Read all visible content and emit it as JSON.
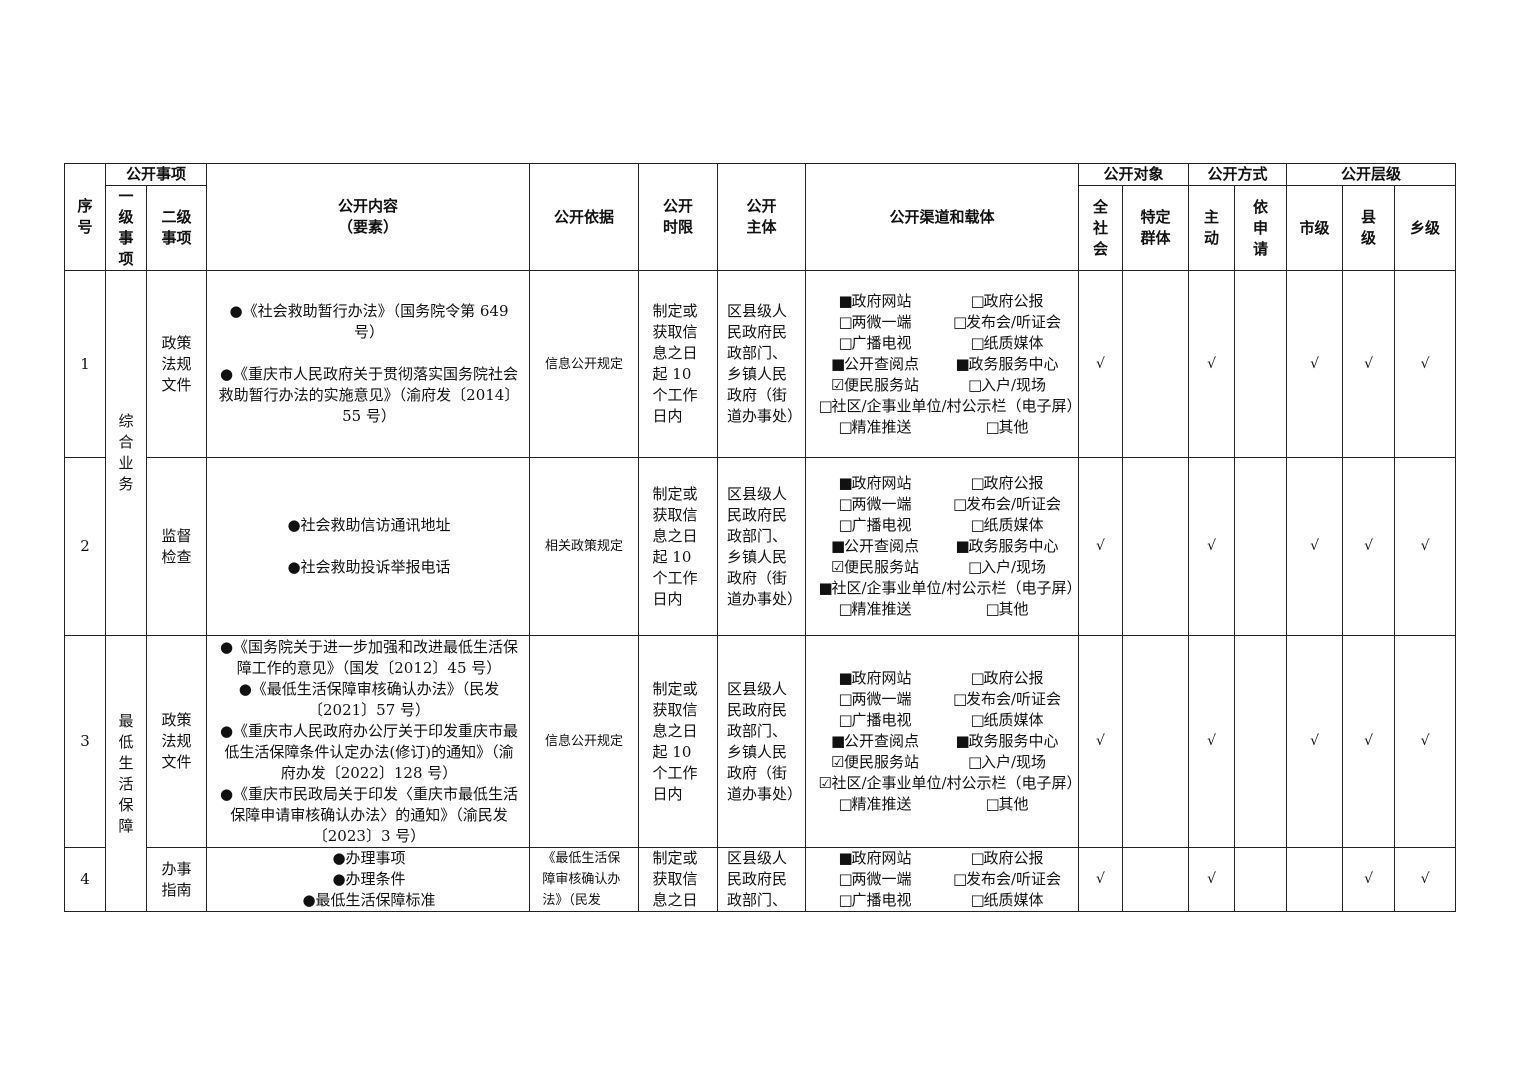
{
  "header": {
    "seq": "序号",
    "items_group": "公开事项",
    "level1": "一级事项",
    "level2": "二级事项",
    "content": "公开内容",
    "content_sub": "（要素）",
    "basis": "公开依据",
    "time_limit": "公开时限",
    "subject": "公开主体",
    "channels": "公开渠道和载体",
    "target_group": "公开对象",
    "target_all": "全社会",
    "target_specific": "特定群体",
    "mode_group": "公开方式",
    "mode_active": "主动",
    "mode_request": "依申请",
    "level_group": "公开层级",
    "level_city": "市级",
    "level_county": "县级",
    "level_town": "乡级"
  },
  "level1_groups": [
    {
      "label": "综合业务"
    },
    {
      "label": "最低生活保障"
    }
  ],
  "rows": [
    {
      "seq": "1",
      "level2": "政策法规文件",
      "content": [
        "●《社会救助暂行办法》（国务院令第 649 号）",
        "●《重庆市人民政府关于贯彻落实国务院社会救助暂行办法的实施意见》（渝府发〔2014〕55 号）"
      ],
      "basis": "信息公开规定",
      "time_limit": "制定或获取信息之日起 10 个工作日内",
      "subject": "区县级人民政府民政部门、乡镇人民政府（街道办事处）",
      "channels": [
        {
          "mark": "■",
          "label": "政府网站"
        },
        {
          "mark": "□",
          "label": "政府公报"
        },
        {
          "mark": "□",
          "label": "两微一端"
        },
        {
          "mark": "□",
          "label": "发布会/听证会"
        },
        {
          "mark": "□",
          "label": "广播电视"
        },
        {
          "mark": "□",
          "label": "纸质媒体"
        },
        {
          "mark": "■",
          "label": "公开查阅点"
        },
        {
          "mark": "■",
          "label": "政务服务中心"
        },
        {
          "mark": "☑",
          "label": "便民服务站"
        },
        {
          "mark": "□",
          "label": "入户/现场"
        },
        {
          "mark": "□",
          "label": "社区/企事业单位/村公示栏（电子屏）",
          "full": true
        },
        {
          "mark": "□",
          "label": "精准推送"
        },
        {
          "mark": "□",
          "label": "其他"
        }
      ],
      "target_all": "√",
      "target_specific": "",
      "mode_active": "√",
      "mode_request": "",
      "level_city": "√",
      "level_county": "√",
      "level_town": "√"
    },
    {
      "seq": "2",
      "level2": "监督检查",
      "content": [
        "●社会救助信访通讯地址",
        "●社会救助投诉举报电话"
      ],
      "basis": "相关政策规定",
      "time_limit": "制定或获取信息之日起 10 个工作日内",
      "subject": "区县级人民政府民政部门、乡镇人民政府（街道办事处）",
      "channels": [
        {
          "mark": "■",
          "label": "政府网站"
        },
        {
          "mark": "□",
          "label": "政府公报"
        },
        {
          "mark": "□",
          "label": "两微一端"
        },
        {
          "mark": "□",
          "label": "发布会/听证会"
        },
        {
          "mark": "□",
          "label": "广播电视"
        },
        {
          "mark": "□",
          "label": "纸质媒体"
        },
        {
          "mark": "■",
          "label": "公开查阅点"
        },
        {
          "mark": "■",
          "label": "政务服务中心"
        },
        {
          "mark": "☑",
          "label": "便民服务站"
        },
        {
          "mark": "□",
          "label": "入户/现场"
        },
        {
          "mark": "■",
          "label": "社区/企事业单位/村公示栏（电子屏）",
          "full": true
        },
        {
          "mark": "□",
          "label": "精准推送"
        },
        {
          "mark": "□",
          "label": "其他"
        }
      ],
      "target_all": "√",
      "target_specific": "",
      "mode_active": "√",
      "mode_request": "",
      "level_city": "√",
      "level_county": "√",
      "level_town": "√"
    },
    {
      "seq": "3",
      "level2": "政策法规文件",
      "content": [
        "●《国务院关于进一步加强和改进最低生活保障工作的意见》（国发〔2012〕45 号）",
        "●《最低生活保障审核确认办法》（民发〔2021〕57 号）",
        "●《重庆市人民政府办公厅关于印发重庆市最低生活保障条件认定办法(修订)的通知》（渝府办发〔2022〕128 号）",
        "●《重庆市民政局关于印发〈重庆市最低生活保障申请审核确认办法〉的通知》（渝民发〔2023〕3 号）"
      ],
      "basis": "信息公开规定",
      "time_limit": "制定或获取信息之日起 10 个工作日内",
      "subject": "区县级人民政府民政部门、乡镇人民政府（街道办事处）",
      "channels": [
        {
          "mark": "■",
          "label": "政府网站"
        },
        {
          "mark": "□",
          "label": "政府公报"
        },
        {
          "mark": "□",
          "label": "两微一端"
        },
        {
          "mark": "□",
          "label": "发布会/听证会"
        },
        {
          "mark": "□",
          "label": "广播电视"
        },
        {
          "mark": "□",
          "label": "纸质媒体"
        },
        {
          "mark": "■",
          "label": "公开查阅点"
        },
        {
          "mark": "■",
          "label": "政务服务中心"
        },
        {
          "mark": "☑",
          "label": "便民服务站"
        },
        {
          "mark": "□",
          "label": "入户/现场"
        },
        {
          "mark": "☑",
          "label": "社区/企事业单位/村公示栏（电子屏）",
          "full": true
        },
        {
          "mark": "□",
          "label": "精准推送"
        },
        {
          "mark": "□",
          "label": "其他"
        }
      ],
      "target_all": "√",
      "target_specific": "",
      "mode_active": "√",
      "mode_request": "",
      "level_city": "√",
      "level_county": "√",
      "level_town": "√"
    },
    {
      "seq": "4",
      "level2": "办事指南",
      "content": [
        "●办理事项",
        "●办理条件",
        "●最低生活保障标准"
      ],
      "basis": "《最低生活保障审核确认办法》（民发",
      "time_limit": "制定或获取信息之日",
      "subject": "区县级人民政府民政部门、",
      "channels": [
        {
          "mark": "■",
          "label": "政府网站"
        },
        {
          "mark": "□",
          "label": "政府公报"
        },
        {
          "mark": "□",
          "label": "两微一端"
        },
        {
          "mark": "□",
          "label": "发布会/听证会"
        },
        {
          "mark": "□",
          "label": "广播电视"
        },
        {
          "mark": "□",
          "label": "纸质媒体"
        }
      ],
      "target_all": "√",
      "target_specific": "",
      "mode_active": "√",
      "mode_request": "",
      "level_city": "",
      "level_county": "√",
      "level_town": "√"
    }
  ]
}
